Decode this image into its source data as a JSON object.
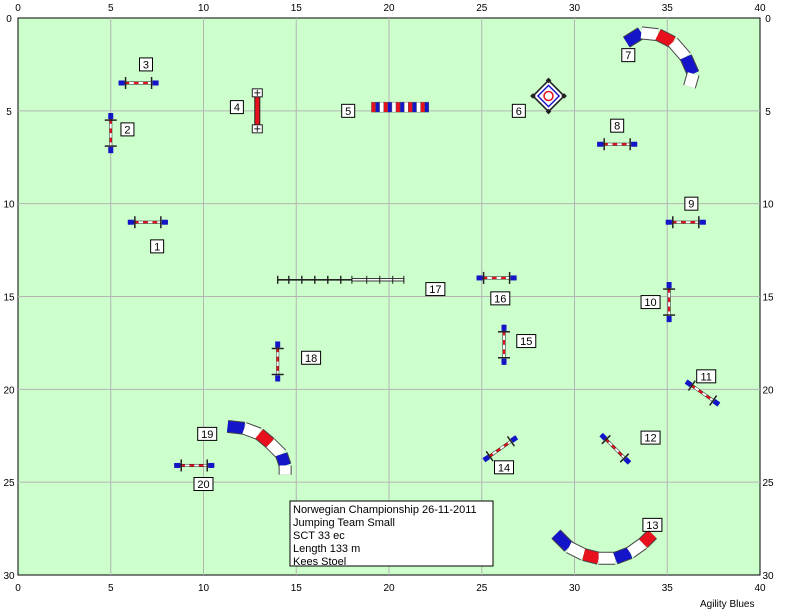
{
  "field": {
    "background": "#ccffcc",
    "grid_color": "#b4b4b4",
    "x_ticks": [
      "0",
      "5",
      "10",
      "15",
      "20",
      "25",
      "30",
      "35",
      "40"
    ],
    "y_ticks": [
      "0",
      "5",
      "10",
      "15",
      "20",
      "25",
      "30"
    ]
  },
  "colors": {
    "red": "#e8101c",
    "blue": "#1414c8",
    "white": "#ffffff",
    "dark": "#222222"
  },
  "obstacles": [
    {
      "n": "1",
      "type": "jump",
      "x": 7.0,
      "y": 11.0,
      "angle": 0,
      "label": {
        "x": 7.5,
        "y": 12.3
      }
    },
    {
      "n": "2",
      "type": "jump",
      "x": 5.0,
      "y": 6.2,
      "angle": 90,
      "label": {
        "x": 5.9,
        "y": 6.0
      }
    },
    {
      "n": "3",
      "type": "jump",
      "x": 6.5,
      "y": 3.5,
      "angle": 0,
      "label": {
        "x": 6.9,
        "y": 2.5
      }
    },
    {
      "n": "4",
      "type": "wall",
      "x": 12.9,
      "y": 5.0,
      "angle": 90,
      "label": {
        "x": 11.8,
        "y": 4.8
      }
    },
    {
      "n": "5",
      "type": "tire_line",
      "x": 20.6,
      "y": 4.8,
      "angle": 0,
      "label": {
        "x": 17.8,
        "y": 5.0
      }
    },
    {
      "n": "6",
      "type": "table",
      "x": 28.6,
      "y": 4.2,
      "angle": 0,
      "label": {
        "x": 27.0,
        "y": 5.0
      }
    },
    {
      "n": "7",
      "type": "tunnel",
      "label": {
        "x": 32.9,
        "y": 2.0
      }
    },
    {
      "n": "8",
      "type": "jump",
      "x": 32.3,
      "y": 6.8,
      "angle": 0,
      "label": {
        "x": 32.3,
        "y": 5.8
      }
    },
    {
      "n": "9",
      "type": "jump",
      "x": 36.0,
      "y": 11.0,
      "angle": 0,
      "label": {
        "x": 36.3,
        "y": 10.0
      }
    },
    {
      "n": "10",
      "type": "jump",
      "x": 35.1,
      "y": 15.3,
      "angle": 90,
      "label": {
        "x": 34.1,
        "y": 15.3
      }
    },
    {
      "n": "11",
      "type": "jump",
      "x": 36.9,
      "y": 20.2,
      "angle": 35,
      "label": {
        "x": 37.1,
        "y": 19.3
      }
    },
    {
      "n": "12",
      "type": "jump",
      "x": 32.2,
      "y": 23.2,
      "angle": 45,
      "label": {
        "x": 34.1,
        "y": 22.6
      }
    },
    {
      "n": "13",
      "type": "tunnel",
      "label": {
        "x": 34.2,
        "y": 27.3
      }
    },
    {
      "n": "14",
      "type": "jump",
      "x": 26.0,
      "y": 23.2,
      "angle": -35,
      "label": {
        "x": 26.2,
        "y": 24.2
      }
    },
    {
      "n": "15",
      "type": "jump",
      "x": 26.2,
      "y": 17.6,
      "angle": 90,
      "label": {
        "x": 27.4,
        "y": 17.4
      }
    },
    {
      "n": "16",
      "type": "jump",
      "x": 25.8,
      "y": 14.0,
      "angle": 0,
      "label": {
        "x": 26.0,
        "y": 15.1
      }
    },
    {
      "n": "17",
      "type": "long_jump",
      "label": {
        "x": 22.5,
        "y": 14.6
      }
    },
    {
      "n": "18",
      "type": "jump",
      "x": 14.0,
      "y": 18.5,
      "angle": 90,
      "label": {
        "x": 15.8,
        "y": 18.3
      }
    },
    {
      "n": "19",
      "type": "tunnel",
      "label": {
        "x": 10.2,
        "y": 22.4
      }
    },
    {
      "n": "20",
      "type": "jump",
      "x": 9.5,
      "y": 24.1,
      "angle": 0,
      "label": {
        "x": 10.0,
        "y": 25.1
      }
    }
  ],
  "info": {
    "line1": "Norwegian Championship 26-11-2011",
    "line2": "Jumping Team Small",
    "line3": "SCT 33 ec",
    "line4": "Length 133 m",
    "line5": "Kees Stoel"
  },
  "footer": "Agility Blues"
}
